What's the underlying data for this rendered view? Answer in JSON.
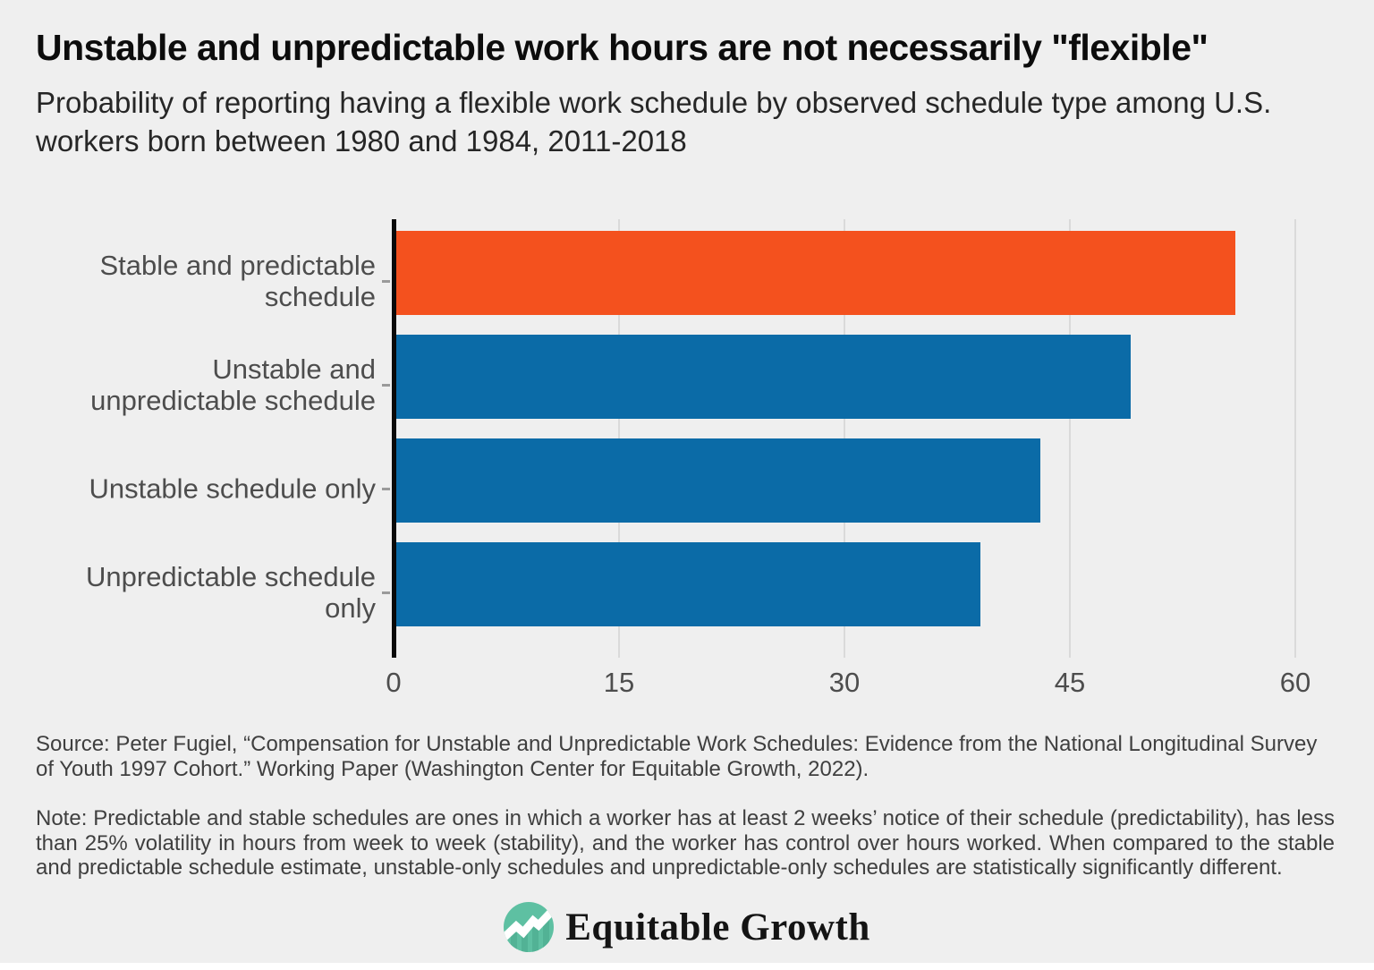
{
  "header": {
    "title": "Unstable and unpredictable work hours are not necessarily \"flexible\"",
    "subtitle": "Probability of reporting having a flexible work schedule by observed schedule type among U.S. workers born between 1980 and 1984, 2011-2018"
  },
  "chart_data": {
    "type": "bar",
    "orientation": "horizontal",
    "categories": [
      "Stable and predictable schedule",
      "Unstable and unpredictable schedule",
      "Unstable schedule only",
      "Unpredictable schedule only"
    ],
    "category_label_lines": [
      [
        "Stable and predictable",
        "schedule"
      ],
      [
        "Unstable and",
        "unpredictable schedule"
      ],
      [
        "Unstable schedule only"
      ],
      [
        "Unpredictable schedule",
        "only"
      ]
    ],
    "values": [
      56,
      49,
      43,
      39
    ],
    "xlim": [
      0,
      60
    ],
    "xticks": [
      0,
      15,
      30,
      45,
      60
    ],
    "highlight_index": 0,
    "colors": {
      "highlight": "#f4511e",
      "default": "#0b6ba7"
    },
    "grid": "vertical light-gray gridlines at each x tick",
    "legend": "none",
    "title": "Unstable and unpredictable work hours are not necessarily \"flexible\"",
    "xlabel": "",
    "ylabel": ""
  },
  "footer": {
    "source": "Source: Peter Fugiel, “Compensation for Unstable and Unpredictable Work Schedules: Evidence from the National Longitudinal Survey of Youth 1997 Cohort.” Working Paper (Washington Center for Equitable Growth, 2022).",
    "note": "Note: Predictable and stable schedules are ones in which a worker has at least 2 weeks’ notice of their schedule (predictability), has less than 25% volatility in hours from week to week (stability), and the worker has control over hours worked. When compared to the stable and predictable schedule estimate, unstable-only schedules and unpredictable-only schedules are statistically significantly different.",
    "logo_text": "Equitable Growth"
  },
  "colors": {
    "background": "#efefef",
    "bar_highlight": "#f4511e",
    "bar_default": "#0b6ba7",
    "gridline": "#dadada",
    "axis": "#0a0a0a",
    "logo_teal": "#5ec0a2"
  }
}
